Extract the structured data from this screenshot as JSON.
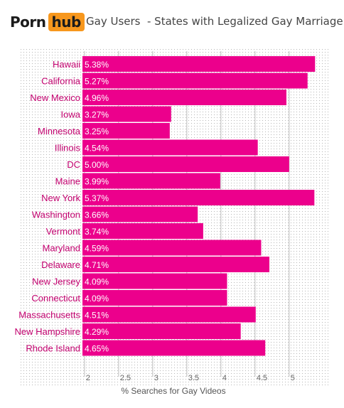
{
  "header": {
    "logo_word": "Porn",
    "logo_badge": "hub",
    "title": "Gay Users  - States with Legalized Gay Marriage"
  },
  "colors": {
    "bar": "#ec008c",
    "label": "#c2006e",
    "grid_dot": "#b5b5b5",
    "logo_badge": "#f7971d"
  },
  "chart_data": {
    "type": "bar",
    "orientation": "horizontal",
    "categories": [
      "Hawaii",
      "California",
      "New Mexico",
      "Iowa",
      "Minnesota",
      "Illinois",
      "DC",
      "Maine",
      "New York",
      "Washington",
      "Vermont",
      "Maryland",
      "Delaware",
      "New Jersey",
      "Connecticut",
      "Massachusetts",
      "New Hampshire",
      "Rhode Island"
    ],
    "values": [
      5.38,
      5.27,
      4.96,
      3.27,
      3.25,
      4.54,
      5.0,
      3.99,
      5.37,
      3.66,
      3.74,
      4.59,
      4.71,
      4.09,
      4.09,
      4.51,
      4.29,
      4.65
    ],
    "value_labels": [
      "5.38%",
      "5.27%",
      "4.96%",
      "3.27%",
      "3.25%",
      "4.54%",
      "5.00%",
      "3.99%",
      "5.37%",
      "3.66%",
      "3.74%",
      "4.59%",
      "4.71%",
      "4.09%",
      "4.09%",
      "4.51%",
      "4.29%",
      "4.65%"
    ],
    "xlabel": "% Searches for Gay Videos",
    "ylabel": "",
    "ticks": [
      2,
      2.5,
      3,
      3.5,
      4,
      4.5,
      5
    ],
    "tick_labels": [
      "2",
      "2.5",
      "3",
      "3.5",
      "4",
      "4.5",
      "5"
    ],
    "xlim": [
      1.97,
      5.45
    ],
    "grid": true
  }
}
